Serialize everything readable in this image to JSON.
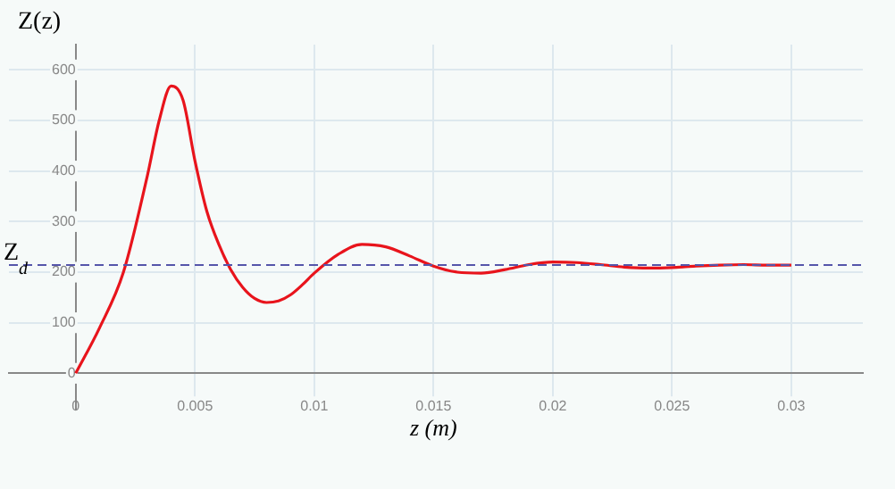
{
  "chart_data": {
    "type": "line",
    "ylabel": "Z(z)",
    "xlabel": "z (m)",
    "x": [
      0,
      0.001,
      0.002,
      0.003,
      0.0035,
      0.004,
      0.0045,
      0.005,
      0.0055,
      0.006,
      0.0065,
      0.007,
      0.0075,
      0.008,
      0.0085,
      0.009,
      0.0095,
      0.01,
      0.011,
      0.012,
      0.013,
      0.014,
      0.015,
      0.016,
      0.017,
      0.018,
      0.019,
      0.02,
      0.021,
      0.022,
      0.023,
      0.024,
      0.025,
      0.026,
      0.027,
      0.028,
      0.029,
      0.03
    ],
    "series": [
      {
        "color": "#e8141c",
        "values": [
          0,
          90,
          200,
          390,
          500,
          568,
          540,
          420,
          320,
          255,
          205,
          170,
          148,
          140,
          143,
          155,
          175,
          198,
          235,
          255,
          250,
          232,
          212,
          200,
          198,
          205,
          215,
          220,
          219,
          215,
          210,
          208,
          209,
          212,
          214,
          215,
          214,
          214
        ]
      }
    ],
    "xlim": [
      -0.0028,
      0.033
    ],
    "ylim": [
      -70,
      650
    ],
    "xticks": [
      0,
      0.005,
      0.01,
      0.015,
      0.02,
      0.025,
      0.03
    ],
    "yticks": [
      0,
      100,
      200,
      300,
      400,
      500,
      600
    ],
    "ref_lines": [
      {
        "axis": "y",
        "value": 214,
        "label": "Z$_{d}$",
        "color": "#5555aa",
        "line_style": "dashed"
      }
    ],
    "grid": true,
    "line_style": "solid",
    "marker": "none",
    "legend": false
  }
}
